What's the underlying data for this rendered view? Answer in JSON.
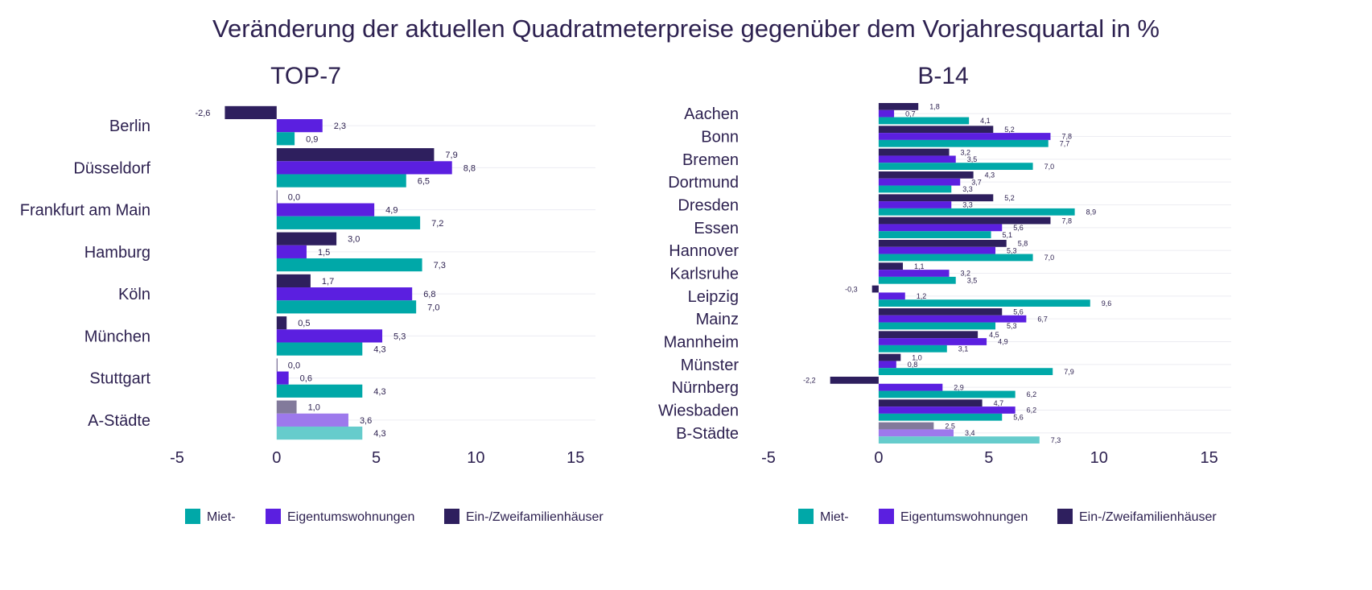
{
  "title": "Veränderung der aktuellen Quadratmeterpreise gegenüber dem Vorjahresquartal in %",
  "colors": {
    "miet": "#00a8a8",
    "eigentum": "#5b1fe0",
    "haus": "#2e1f5e",
    "miet_light": "#66cccc",
    "eigentum_light": "#9d79ec",
    "haus_light": "#827a9b",
    "grid": "#ececf2",
    "text": "#2d2150"
  },
  "chart_data": [
    {
      "type": "bar",
      "orientation": "horizontal",
      "title": "TOP-7",
      "categories": [
        "Berlin",
        "Düsseldorf",
        "Frankfurt am Main",
        "Hamburg",
        "Köln",
        "München",
        "Stuttgart",
        "A-Städte"
      ],
      "series": [
        {
          "name": "Ein-/Zweifamilienhäuser",
          "values": [
            -2.6,
            7.9,
            0.0,
            3.0,
            1.7,
            0.5,
            0.0,
            1.0
          ],
          "labels": [
            "-2,6",
            "7,9",
            "0,0",
            "3,0",
            "1,7",
            "0,5",
            "0,0",
            "1,0"
          ]
        },
        {
          "name": "Eigentumswohnungen",
          "values": [
            2.3,
            8.8,
            4.9,
            1.5,
            6.8,
            5.3,
            0.6,
            3.6
          ],
          "labels": [
            "2,3",
            "8,8",
            "4,9",
            "1,5",
            "6,8",
            "5,3",
            "0,6",
            "3,6"
          ]
        },
        {
          "name": "Miet-",
          "values": [
            0.9,
            6.5,
            7.2,
            7.3,
            7.0,
            4.3,
            4.3,
            4.3
          ],
          "labels": [
            "0,9",
            "6,5",
            "7,2",
            "7,3",
            "7,0",
            "4,3",
            "4,3",
            "4,3"
          ]
        }
      ],
      "highlighted_category": "A-Städte",
      "xlim": [
        -5,
        16
      ],
      "xticks": [
        -5,
        0,
        5,
        10,
        15
      ],
      "xtick_labels": [
        "-5",
        "0",
        "5",
        "10",
        "15"
      ],
      "grid": "horizontal",
      "legend": {
        "placement": "bottom-center",
        "items": [
          "Miet-",
          "Eigentumswohnungen",
          "Ein-/Zweifamilienhäuser"
        ]
      }
    },
    {
      "type": "bar",
      "orientation": "horizontal",
      "title": "B-14",
      "categories": [
        "Aachen",
        "Bonn",
        "Bremen",
        "Dortmund",
        "Dresden",
        "Essen",
        "Hannover",
        "Karlsruhe",
        "Leipzig",
        "Mainz",
        "Mannheim",
        "Münster",
        "Nürnberg",
        "Wiesbaden",
        "B-Städte"
      ],
      "series": [
        {
          "name": "Ein-/Zweifamilienhäuser",
          "values": [
            1.8,
            5.2,
            3.2,
            4.3,
            5.2,
            7.8,
            5.8,
            1.1,
            -0.3,
            5.6,
            4.5,
            1.0,
            -2.2,
            4.7,
            2.5
          ],
          "labels": [
            "1,8",
            "5,2",
            "3,2",
            "4,3",
            "5,2",
            "7,8",
            "5,8",
            "1,1",
            "-0,3",
            "5,6",
            "4,5",
            "1,0",
            "-2,2",
            "4,7",
            "2,5"
          ]
        },
        {
          "name": "Eigentumswohnungen",
          "values": [
            0.7,
            7.8,
            3.5,
            3.7,
            3.3,
            5.6,
            5.3,
            3.2,
            1.2,
            6.7,
            4.9,
            0.8,
            2.9,
            6.2,
            3.4
          ],
          "labels": [
            "0,7",
            "7,8",
            "3,5",
            "3,7",
            "3,3",
            "5,6",
            "5,3",
            "3,2",
            "1,2",
            "6,7",
            "4,9",
            "0,8",
            "2,9",
            "6,2",
            "3,4"
          ]
        },
        {
          "name": "Miet-",
          "values": [
            4.1,
            7.7,
            7.0,
            3.3,
            8.9,
            5.1,
            7.0,
            3.5,
            9.6,
            5.3,
            3.1,
            7.9,
            6.2,
            5.6,
            7.3
          ],
          "labels": [
            "4,1",
            "7,7",
            "7,0",
            "3,3",
            "8,9",
            "5,1",
            "7,0",
            "3,5",
            "9,6",
            "5,3",
            "3,1",
            "7,9",
            "6,2",
            "5,6",
            "7,3"
          ]
        }
      ],
      "highlighted_category": "B-Städte",
      "xlim": [
        -5,
        16
      ],
      "xticks": [
        -5,
        0,
        5,
        10,
        15
      ],
      "xtick_labels": [
        "-5",
        "0",
        "5",
        "10",
        "15"
      ],
      "grid": "horizontal",
      "legend": {
        "placement": "bottom-center",
        "items": [
          "Miet-",
          "Eigentumswohnungen",
          "Ein-/Zweifamilienhäuser"
        ]
      }
    }
  ]
}
